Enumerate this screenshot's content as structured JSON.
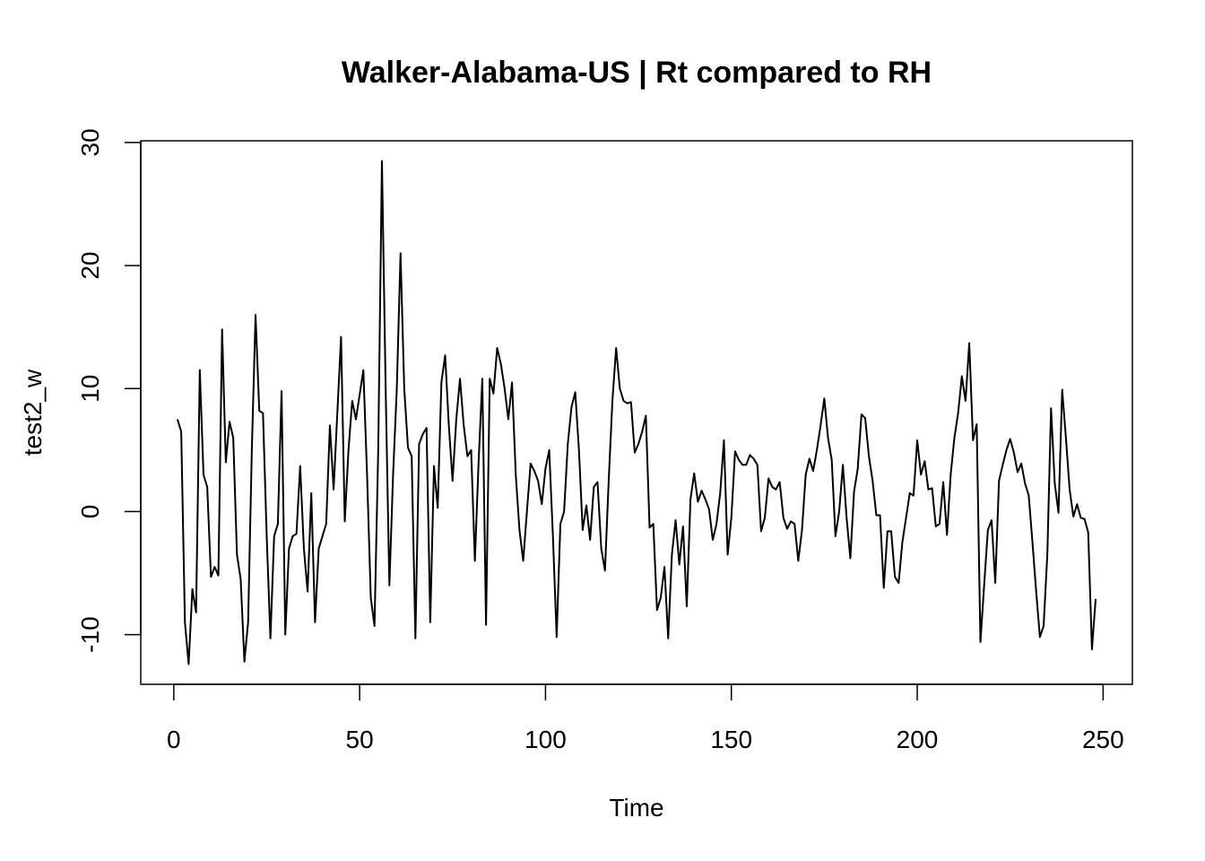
{
  "chart_data": {
    "type": "line",
    "title": "Walker-Alabama-US | Rt compared to RH",
    "x_label": "Time",
    "y_label": "test2_w",
    "color": "#000000",
    "xlim": [
      -8.88,
      257.88
    ],
    "ylim": [
      -14.04,
      30.14
    ],
    "xticks": [
      0,
      50,
      100,
      150,
      200,
      250
    ],
    "yticks": [
      -10,
      0,
      10,
      20,
      30
    ],
    "x": [
      1,
      2,
      3,
      4,
      5,
      6,
      7,
      8,
      9,
      10,
      11,
      12,
      13,
      14,
      15,
      16,
      17,
      18,
      19,
      20,
      21,
      22,
      23,
      24,
      25,
      26,
      27,
      28,
      29,
      30,
      31,
      32,
      33,
      34,
      35,
      36,
      37,
      38,
      39,
      40,
      41,
      42,
      43,
      44,
      45,
      46,
      47,
      48,
      49,
      50,
      51,
      52,
      53,
      54,
      55,
      56,
      57,
      58,
      59,
      60,
      61,
      62,
      63,
      64,
      65,
      66,
      67,
      68,
      69,
      70,
      71,
      72,
      73,
      74,
      75,
      76,
      77,
      78,
      79,
      80,
      81,
      82,
      83,
      84,
      85,
      86,
      87,
      88,
      89,
      90,
      91,
      92,
      93,
      94,
      95,
      96,
      97,
      98,
      99,
      100,
      101,
      102,
      103,
      104,
      105,
      106,
      107,
      108,
      109,
      110,
      111,
      112,
      113,
      114,
      115,
      116,
      117,
      118,
      119,
      120,
      121,
      122,
      123,
      124,
      125,
      126,
      127,
      128,
      129,
      130,
      131,
      132,
      133,
      134,
      135,
      136,
      137,
      138,
      139,
      140,
      141,
      142,
      143,
      144,
      145,
      146,
      147,
      148,
      149,
      150,
      151,
      152,
      153,
      154,
      155,
      156,
      157,
      158,
      159,
      160,
      161,
      162,
      163,
      164,
      165,
      166,
      167,
      168,
      169,
      170,
      171,
      172,
      173,
      174,
      175,
      176,
      177,
      178,
      179,
      180,
      181,
      182,
      183,
      184,
      185,
      186,
      187,
      188,
      189,
      190,
      191,
      192,
      193,
      194,
      195,
      196,
      197,
      198,
      199,
      200,
      201,
      202,
      203,
      204,
      205,
      206,
      207,
      208,
      209,
      210,
      211,
      212,
      213,
      214,
      215,
      216,
      217,
      218,
      219,
      220,
      221,
      222,
      223,
      224,
      225,
      226,
      227,
      228,
      229,
      230,
      231,
      232,
      233,
      234,
      235,
      236,
      237,
      238,
      239,
      240,
      241,
      242,
      243,
      244,
      245,
      246,
      247,
      248
    ],
    "values": [
      7.5,
      6.5,
      -9,
      -12.4,
      -6.3,
      -8.2,
      11.5,
      3,
      2,
      -5.3,
      -4.5,
      -5.2,
      14.8,
      4,
      7.3,
      6,
      -3.5,
      -5.5,
      -12.2,
      -9,
      5,
      16,
      8.2,
      8,
      -2,
      -10.3,
      -2,
      -1,
      9.8,
      -10,
      -3,
      -2,
      -1.8,
      3.7,
      -3,
      -6.5,
      1.5,
      -9,
      -3,
      -2,
      -1,
      7,
      1.8,
      8,
      14.2,
      -0.8,
      5,
      9,
      7.5,
      9.5,
      11.5,
      3,
      -7,
      -9.3,
      5,
      28.5,
      10,
      -6,
      3,
      10,
      21,
      10,
      5.2,
      4.5,
      -10.3,
      5.5,
      6.3,
      6.8,
      -9,
      3.7,
      0.3,
      10.5,
      12.7,
      7,
      2.5,
      7.5,
      10.8,
      7,
      4.5,
      5,
      -4,
      4,
      10.8,
      -9.2,
      10.8,
      9.6,
      13.3,
      12,
      10,
      7.5,
      10.5,
      3,
      -1.5,
      -4,
      0,
      3.9,
      3.3,
      2.5,
      0.6,
      3.5,
      5,
      -2,
      -10.2,
      -1,
      0,
      5.5,
      8.5,
      9.7,
      5,
      -1.5,
      0.5,
      -2.3,
      2,
      2.4,
      -3,
      -4.8,
      2.5,
      9,
      13.3,
      10,
      9,
      8.8,
      8.9,
      4.8,
      5.5,
      6.5,
      7.8,
      -1.3,
      -1,
      -8,
      -7,
      -4.5,
      -10.3,
      -3.5,
      -0.7,
      -4.3,
      -1.2,
      -7.7,
      1,
      3.1,
      0.8,
      1.7,
      1,
      0.2,
      -2.3,
      -1,
      1.5,
      5.8,
      -3.5,
      -0.5,
      4.9,
      4.2,
      3.8,
      3.8,
      4.6,
      4.3,
      3.8,
      -1.6,
      -0.5,
      2.7,
      2,
      1.8,
      2.4,
      -0.5,
      -1.4,
      -0.8,
      -1,
      -4,
      -1.5,
      3,
      4.3,
      3.3,
      5,
      7,
      9.2,
      6,
      4.2,
      -2,
      0,
      3.8,
      -0.5,
      -3.8,
      1.6,
      3.5,
      7.9,
      7.6,
      4.5,
      2.5,
      -0.3,
      -0.3,
      -6.2,
      -1.6,
      -1.6,
      -5.3,
      -5.8,
      -2.5,
      -0.5,
      1.5,
      1.3,
      5.8,
      3,
      4.1,
      1.8,
      1.9,
      -1.2,
      -1,
      2.4,
      -1.9,
      3,
      6,
      8,
      11,
      9,
      13.7,
      5.8,
      7.1,
      -10.6,
      -6,
      -1.5,
      -0.7,
      -5.8,
      2.5,
      3.8,
      5,
      5.9,
      4.8,
      3.2,
      3.9,
      2.3,
      1.3,
      -2.5,
      -6.5,
      -10.2,
      -9.3,
      -3.5,
      8.4,
      2.3,
      -0.1,
      9.9,
      6,
      1.8,
      -0.4,
      0.6,
      -0.5,
      -0.6,
      -1.7,
      -11.2,
      -7.1
    ]
  }
}
